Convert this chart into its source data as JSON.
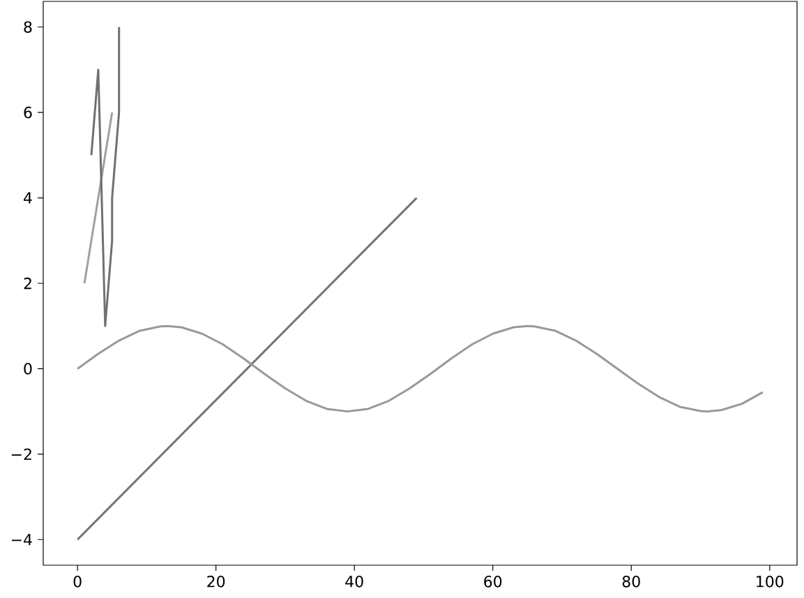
{
  "chart_data": {
    "type": "line",
    "xlim": [
      -4.95,
      103.95
    ],
    "ylim": [
      -4.6,
      8.6
    ],
    "xticks": [
      0,
      20,
      40,
      60,
      80,
      100
    ],
    "yticks": [
      {
        "value": -4,
        "label": "−4"
      },
      {
        "value": -2,
        "label": "−2"
      },
      0,
      2,
      4,
      6,
      8
    ],
    "series": [
      {
        "color": "#a0a0a0",
        "x": [
          1,
          5
        ],
        "values": [
          2,
          6
        ]
      },
      {
        "color": "#707070",
        "x": [
          2,
          3,
          4,
          5,
          5,
          6,
          6
        ],
        "values": [
          5,
          7,
          1,
          3,
          4,
          6,
          8
        ]
      },
      {
        "color": "#737373",
        "x": [
          0,
          49
        ],
        "values": [
          -4,
          4
        ]
      },
      {
        "color": "#999999",
        "x": [
          0,
          3,
          6,
          9,
          12,
          13,
          15,
          18,
          21,
          24,
          27,
          30,
          33,
          36,
          39,
          42,
          45,
          48,
          51,
          54,
          57,
          60,
          63,
          65,
          66,
          69,
          72,
          75,
          78,
          81,
          84,
          87,
          90,
          91,
          93,
          96,
          99
        ],
        "values": [
          0,
          0.35,
          0.66,
          0.89,
          0.99,
          1,
          0.97,
          0.82,
          0.57,
          0.24,
          -0.12,
          -0.46,
          -0.75,
          -0.94,
          -1,
          -0.94,
          -0.75,
          -0.46,
          -0.12,
          0.24,
          0.57,
          0.82,
          0.97,
          1,
          0.99,
          0.89,
          0.66,
          0.35,
          0,
          -0.35,
          -0.66,
          -0.89,
          -0.99,
          -1,
          -0.97,
          -0.82,
          -0.55
        ]
      }
    ]
  }
}
